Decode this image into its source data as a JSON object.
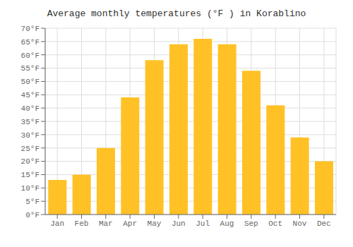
{
  "chart_data": {
    "type": "bar",
    "title": "Average monthly temperatures (°F ) in Korablino",
    "categories": [
      "Jan",
      "Feb",
      "Mar",
      "Apr",
      "May",
      "Jun",
      "Jul",
      "Aug",
      "Sep",
      "Oct",
      "Nov",
      "Dec"
    ],
    "values": [
      13,
      15,
      25,
      44,
      58,
      64,
      66,
      64,
      54,
      41,
      29,
      20
    ],
    "color": "#FFC125",
    "ylim": [
      0,
      70
    ],
    "yticks": [
      {
        "value": 0,
        "label": "0°F"
      },
      {
        "value": 5,
        "label": "5°F"
      },
      {
        "value": 10,
        "label": "10°F"
      },
      {
        "value": 15,
        "label": "15°F"
      },
      {
        "value": 20,
        "label": "20°F"
      },
      {
        "value": 25,
        "label": "25°F"
      },
      {
        "value": 30,
        "label": "30°F"
      },
      {
        "value": 35,
        "label": "35°F"
      },
      {
        "value": 40,
        "label": "40°F"
      },
      {
        "value": 45,
        "label": "45°F"
      },
      {
        "value": 50,
        "label": "50°F"
      },
      {
        "value": 55,
        "label": "55°F"
      },
      {
        "value": 60,
        "label": "60°F"
      },
      {
        "value": 65,
        "label": "65°F"
      },
      {
        "value": 70,
        "label": "70°F"
      }
    ],
    "grid": true
  }
}
